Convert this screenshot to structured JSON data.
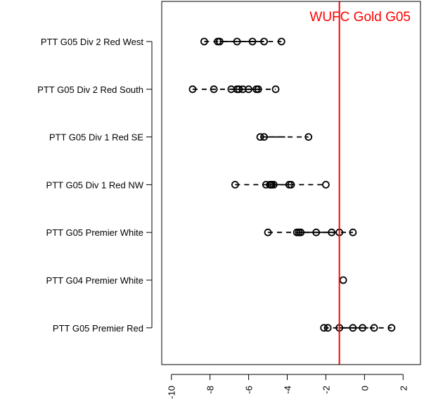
{
  "chart_data": {
    "type": "scatter",
    "title": "",
    "xlabel": "",
    "ylabel": "",
    "xlim": [
      -10.5,
      2.9
    ],
    "x_ticks": [
      "-10",
      "-8",
      "-6",
      "-4",
      "-2",
      "0",
      "2"
    ],
    "x_tick_values": [
      -10,
      -8,
      -6,
      -4,
      -2,
      0,
      2
    ],
    "categories": [
      "PTT G05 Div 2 Red West",
      "PTT G05 Div 2 Red South",
      "PTT G05 Div 1 Red SE",
      "PTT G05 Div 1 Red NW",
      "PTT G05 Premier White",
      "PTT G04 Premier White",
      "PTT G05 Premier Red"
    ],
    "groups": [
      {
        "name": "PTT G05 Div 2 Red West",
        "points": [
          -8.3,
          -7.6,
          -7.5,
          -6.6,
          -5.8,
          -5.2,
          -4.3
        ],
        "box": [
          -7.5,
          -5.2
        ]
      },
      {
        "name": "PTT G05 Div 2 Red South",
        "points": [
          -8.9,
          -7.8,
          -6.9,
          -6.6,
          -6.5,
          -6.3,
          -6.0,
          -5.6,
          -5.5,
          -4.6
        ],
        "box": [
          -6.9,
          -5.5
        ]
      },
      {
        "name": "PTT G05 Div 1 Red SE",
        "points": [
          -5.4,
          -5.2,
          -2.9
        ],
        "box": [
          -5.2,
          -4.1
        ]
      },
      {
        "name": "PTT G05 Div 1 Red NW",
        "points": [
          -6.7,
          -5.1,
          -4.9,
          -4.85,
          -4.8,
          -4.7,
          -3.9,
          -3.8,
          -2.0
        ],
        "box": [
          -4.9,
          -3.8
        ]
      },
      {
        "name": "PTT G05 Premier White",
        "points": [
          -5.0,
          -3.5,
          -3.4,
          -3.3,
          -2.5,
          -1.7,
          -1.3,
          -0.6
        ],
        "box": [
          -3.4,
          -1.5
        ]
      },
      {
        "name": "PTT G04 Premier White",
        "points": [
          -1.1
        ],
        "box": [
          -1.1,
          -1.1
        ]
      },
      {
        "name": "PTT G05 Premier Red",
        "points": [
          -2.1,
          -1.9,
          -1.3,
          -0.6,
          -0.1,
          0.5,
          1.4
        ],
        "box": [
          -1.3,
          0.2
        ]
      }
    ],
    "reference_line": {
      "value": -1.3,
      "label": "WUFC Gold G05",
      "color": "#ff0000"
    },
    "grid": false,
    "legend": "none"
  }
}
